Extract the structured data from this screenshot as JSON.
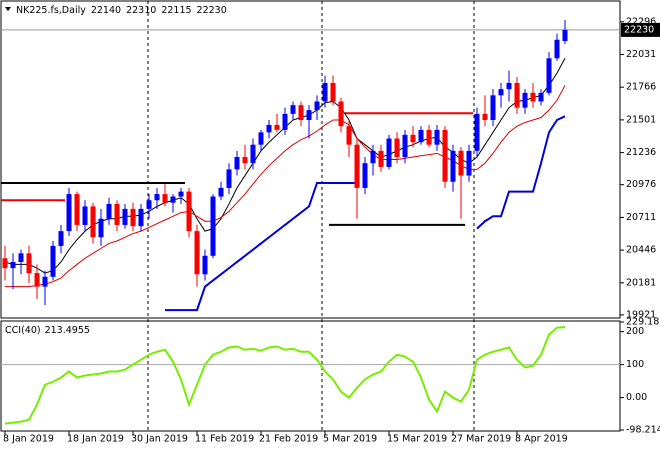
{
  "chart_data": [
    {
      "type": "candlestick",
      "symbol": "NK225.fs,Daily",
      "categories": [
        "8 Jan 2019",
        null,
        null,
        null,
        null,
        null,
        null,
        null,
        "18 Jan 2019",
        null,
        null,
        null,
        null,
        null,
        null,
        null,
        "30 Jan 2019",
        null,
        null,
        null,
        null,
        null,
        null,
        null,
        "11 Feb 2019",
        null,
        null,
        null,
        null,
        null,
        null,
        null,
        "21 Feb 2019",
        null,
        null,
        null,
        null,
        null,
        null,
        null,
        "5 Mar 2019",
        null,
        null,
        null,
        null,
        null,
        null,
        null,
        "15 Mar 2019",
        null,
        null,
        null,
        null,
        null,
        null,
        null,
        "27 Mar 2019",
        null,
        null,
        null,
        null,
        null,
        null,
        null,
        "8 Apr 2019",
        null,
        null,
        null,
        null,
        null,
        null
      ],
      "open": [
        20380,
        20300,
        20350,
        20420,
        20260,
        20150,
        20230,
        20480,
        20600,
        20900,
        20650,
        20800,
        20550,
        20700,
        20820,
        20650,
        20780,
        20640,
        20780,
        20850,
        20900,
        20830,
        20880,
        20920,
        20600,
        20250,
        20400,
        20880,
        20950,
        21100,
        21200,
        21150,
        21300,
        21400,
        21460,
        21420,
        21550,
        21620,
        21500,
        21580,
        21650,
        21800,
        21650,
        21450,
        21300,
        20950,
        21150,
        21250,
        21120,
        21350,
        21200,
        21380,
        21320,
        21420,
        21300,
        21420,
        21000,
        21250,
        21050,
        21250,
        21550,
        21500,
        21700,
        21750,
        21800,
        21600,
        21720,
        21650,
        21720,
        22000,
        22140
      ],
      "high": [
        20480,
        20420,
        20450,
        20480,
        20330,
        20280,
        20520,
        20650,
        20950,
        20920,
        20850,
        20830,
        20780,
        20870,
        20850,
        20820,
        20830,
        20820,
        20900,
        20950,
        20980,
        20900,
        20950,
        20950,
        20650,
        20450,
        20900,
        21000,
        21150,
        21250,
        21300,
        21350,
        21420,
        21500,
        21550,
        21600,
        21650,
        21650,
        21620,
        21700,
        21860,
        21860,
        21680,
        21500,
        21350,
        21200,
        21300,
        21300,
        21380,
        21400,
        21420,
        21450,
        21450,
        21460,
        21460,
        21450,
        21300,
        21280,
        21300,
        21600,
        21700,
        21750,
        21800,
        21900,
        21850,
        21750,
        21800,
        21750,
        22050,
        22200,
        22310
      ],
      "low": [
        20200,
        20130,
        20250,
        20180,
        20050,
        20000,
        20200,
        20420,
        20560,
        20600,
        20600,
        20500,
        20480,
        20650,
        20600,
        20620,
        20600,
        20600,
        20700,
        20780,
        20800,
        20750,
        20820,
        20550,
        20150,
        20200,
        20380,
        20850,
        20900,
        21050,
        21100,
        21100,
        21250,
        21350,
        21400,
        21380,
        21500,
        21450,
        21350,
        21500,
        21600,
        21620,
        21400,
        21200,
        20700,
        20900,
        21050,
        21080,
        21100,
        21150,
        21150,
        21280,
        21300,
        21280,
        21250,
        20950,
        20920,
        20700,
        21000,
        21200,
        21450,
        21450,
        21600,
        21650,
        21550,
        21550,
        21600,
        21620,
        21700,
        21980,
        22115
      ],
      "close": [
        20300,
        20350,
        20420,
        20260,
        20150,
        20230,
        20480,
        20600,
        20900,
        20650,
        20800,
        20550,
        20700,
        20820,
        20650,
        20780,
        20640,
        20780,
        20850,
        20900,
        20830,
        20880,
        20920,
        20600,
        20250,
        20400,
        20880,
        20950,
        21100,
        21200,
        21150,
        21300,
        21400,
        21460,
        21420,
        21550,
        21620,
        21500,
        21580,
        21650,
        21800,
        21650,
        21450,
        21300,
        20950,
        21150,
        21250,
        21120,
        21350,
        21200,
        21380,
        21320,
        21420,
        21300,
        21420,
        21000,
        21250,
        21050,
        21250,
        21550,
        21500,
        21700,
        21750,
        21800,
        21600,
        21720,
        21650,
        21720,
        22000,
        22150,
        22230
      ],
      "up_color": "#0000ff",
      "down_color": "#ff0000",
      "ylim": [
        19896,
        22456
      ],
      "yticks": [
        22296,
        22031,
        21766,
        21501,
        21236,
        20976,
        20711,
        20446,
        20181,
        19921
      ],
      "overlays": [
        {
          "color": "#000000",
          "values": [
            20350,
            20330,
            20330,
            20330,
            20300,
            20260,
            20280,
            20350,
            20450,
            20530,
            20600,
            20650,
            20680,
            20700,
            20700,
            20720,
            20720,
            20730,
            20760,
            20800,
            20830,
            20850,
            20870,
            20820,
            20700,
            20600,
            20620,
            20700,
            20820,
            20950,
            21050,
            21150,
            21250,
            21320,
            21380,
            21440,
            21500,
            21520,
            21540,
            21580,
            21640,
            21650,
            21600,
            21500,
            21350,
            21300,
            21250,
            21200,
            21220,
            21250,
            21280,
            21300,
            21330,
            21350,
            21360,
            21280,
            21240,
            21180,
            21150,
            21200,
            21300,
            21400,
            21500,
            21600,
            21650,
            21660,
            21680,
            21700,
            21780,
            21880,
            22000
          ]
        },
        {
          "color": "#dd0000",
          "values": [
            20150,
            20150,
            20150,
            20150,
            20160,
            20170,
            20190,
            20220,
            20280,
            20330,
            20380,
            20420,
            20460,
            20500,
            20520,
            20550,
            20580,
            20600,
            20630,
            20660,
            20690,
            20720,
            20750,
            20760,
            20720,
            20680,
            20680,
            20710,
            20760,
            20830,
            20900,
            20980,
            21060,
            21130,
            21190,
            21250,
            21300,
            21340,
            21370,
            21410,
            21460,
            21500,
            21500,
            21460,
            21350,
            21280,
            21220,
            21180,
            21180,
            21180,
            21190,
            21200,
            21210,
            21220,
            21230,
            21200,
            21170,
            21130,
            21100,
            21100,
            21150,
            21230,
            21320,
            21400,
            21450,
            21480,
            21500,
            21520,
            21580,
            21660,
            21780
          ]
        },
        {
          "color": "#0000dd",
          "values": [
            null,
            null,
            null,
            null,
            null,
            null,
            null,
            null,
            null,
            null,
            null,
            null,
            null,
            null,
            null,
            null,
            null,
            null,
            null,
            null,
            19960,
            19960,
            19960,
            19960,
            19960,
            20150,
            20200,
            20250,
            20300,
            20350,
            20400,
            20450,
            20500,
            20550,
            20600,
            20650,
            20700,
            20750,
            20800,
            20990,
            20990,
            20990,
            20990,
            20990,
            20990,
            null,
            null,
            null,
            null,
            null,
            null,
            null,
            null,
            null,
            null,
            null,
            null,
            null,
            null,
            20620,
            20680,
            20720,
            20720,
            20920,
            20920,
            20920,
            20920,
            21150,
            21400,
            21500,
            21530
          ]
        }
      ],
      "levels": [
        {
          "value": 20990,
          "color": "#000000",
          "from": 0,
          "to": 22
        },
        {
          "value": 20850,
          "color": "#ee0000",
          "from": 0,
          "to": 7
        },
        {
          "value": 21555,
          "color": "#ee0000",
          "from": 43,
          "to": 58
        },
        {
          "value": 20650,
          "color": "#000000",
          "from": 41,
          "to": 57
        }
      ]
    },
    {
      "type": "line",
      "label": "CCI(40)",
      "color": "#77ee00",
      "values": [
        -79,
        -76,
        -73,
        -67,
        -21,
        39,
        48,
        61,
        79,
        61,
        67,
        70,
        73,
        79,
        79,
        85,
        100,
        115,
        130,
        139,
        145,
        109,
        55,
        -21,
        39,
        100,
        130,
        139,
        152,
        155,
        145,
        148,
        142,
        152,
        155,
        145,
        148,
        139,
        139,
        115,
        79,
        55,
        18,
        0,
        30,
        55,
        70,
        79,
        109,
        130,
        124,
        109,
        61,
        -6,
        -42,
        18,
        0,
        -12,
        24,
        115,
        130,
        139,
        145,
        152,
        115,
        91,
        97,
        130,
        191,
        212,
        213.4955
      ],
      "ylim": [
        -98.2147,
        229.1868
      ],
      "yticks": [
        229.1868,
        200,
        100,
        {
          "value": 0,
          "label": "0.00"
        },
        -98.2147
      ],
      "levels": [
        100
      ]
    }
  ]
}
